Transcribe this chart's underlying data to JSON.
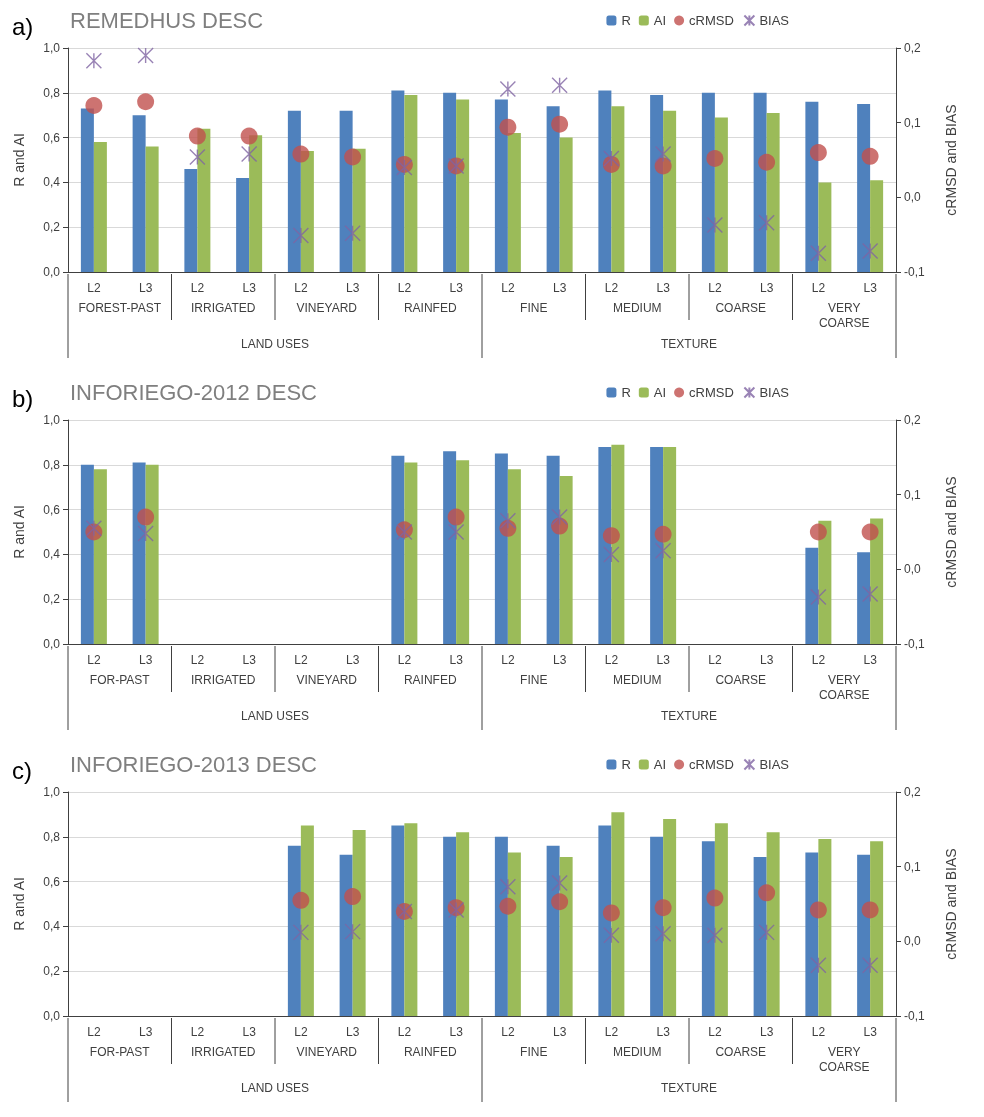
{
  "chart_data": [
    {
      "type": "bar",
      "title": "REMEDHUS DESC",
      "ylabel": "R and AI",
      "y2label": "cRMSD and BIAS",
      "categories": [
        "L2",
        "L3",
        "L2",
        "L3",
        "L2",
        "L3",
        "L2",
        "L3",
        "L2",
        "L3",
        "L2",
        "L3",
        "L2",
        "L3",
        "L2",
        "L3"
      ],
      "series": [
        {
          "name": "R",
          "color": "#4f81bd",
          "values": [
            0.73,
            0.7,
            0.46,
            0.42,
            0.72,
            0.72,
            0.81,
            0.8,
            0.77,
            0.74,
            0.81,
            0.79,
            0.8,
            0.8,
            0.76,
            0.75
          ]
        },
        {
          "name": "AI",
          "color": "#9bbb59",
          "values": [
            0.58,
            0.56,
            0.64,
            0.61,
            0.54,
            0.55,
            0.79,
            0.77,
            0.62,
            0.6,
            0.74,
            0.72,
            0.69,
            0.71,
            0.4,
            0.41
          ]
        },
        {
          "name": "cRMSD",
          "type": "scatter",
          "axis": "y2",
          "marker": "circle",
          "color": "#c0504d",
          "values": [
            0.123,
            0.128,
            0.082,
            0.082,
            0.058,
            0.054,
            0.044,
            0.042,
            0.094,
            0.098,
            0.044,
            0.042,
            0.052,
            0.047,
            0.06,
            0.055
          ]
        },
        {
          "name": "BIAS",
          "type": "scatter",
          "axis": "y2",
          "marker": "cross",
          "color": "#8064a2",
          "values": [
            0.183,
            0.19,
            0.054,
            0.058,
            -0.051,
            -0.048,
            0.04,
            0.042,
            0.145,
            0.15,
            0.052,
            0.058,
            -0.037,
            -0.034,
            -0.075,
            -0.072
          ]
        }
      ],
      "ylim": [
        0,
        1
      ],
      "yticks": [
        {
          "value": 0,
          "label": "0,0"
        },
        {
          "value": 0.2,
          "label": "0,2"
        },
        {
          "value": 0.4,
          "label": "0,4"
        },
        {
          "value": 0.6,
          "label": "0,6"
        },
        {
          "value": 0.8,
          "label": "0,8"
        },
        {
          "value": 1,
          "label": "1,0"
        }
      ],
      "y2lim": [
        -0.1,
        0.2
      ],
      "y2ticks": [
        {
          "value": -0.1,
          "label": "-0,1"
        },
        {
          "value": 0,
          "label": "0,0"
        },
        {
          "value": 0.1,
          "label": "0,1"
        },
        {
          "value": 0.2,
          "label": "0,2"
        }
      ],
      "grid": "y",
      "legend": "top right",
      "annotations": [
        "a)",
        "FOREST-PAST",
        "IRRIGATED",
        "VINEYARD",
        "RAINFED",
        "FINE",
        "MEDIUM",
        "COARSE",
        "VERY COARSE",
        "LAND USES",
        "TEXTURE"
      ]
    },
    {
      "type": "bar",
      "title": "INFORIEGO-2012 DESC",
      "ylabel": "R and AI",
      "y2label": "cRMSD and BIAS",
      "categories": [
        "L2",
        "L3",
        "L2",
        "L3",
        "L2",
        "L3",
        "L2",
        "L3",
        "L2",
        "L3",
        "L2",
        "L3",
        "L2",
        "L3",
        "L2",
        "L3"
      ],
      "series": [
        {
          "name": "R",
          "color": "#4f81bd",
          "values": [
            0.8,
            0.81,
            null,
            null,
            null,
            null,
            0.84,
            0.86,
            0.85,
            0.84,
            0.88,
            0.88,
            null,
            null,
            0.43,
            0.41
          ]
        },
        {
          "name": "AI",
          "color": "#9bbb59",
          "values": [
            0.78,
            0.8,
            null,
            null,
            null,
            null,
            0.81,
            0.82,
            0.78,
            0.75,
            0.89,
            0.88,
            null,
            null,
            0.55,
            0.56
          ]
        },
        {
          "name": "cRMSD",
          "type": "scatter",
          "axis": "y2",
          "marker": "circle",
          "color": "#c0504d",
          "values": [
            0.05,
            0.07,
            null,
            null,
            null,
            null,
            0.053,
            0.07,
            0.055,
            0.058,
            0.045,
            0.047,
            null,
            null,
            0.05,
            0.05
          ]
        },
        {
          "name": "BIAS",
          "type": "scatter",
          "axis": "y2",
          "marker": "cross",
          "color": "#8064a2",
          "values": [
            0.055,
            0.048,
            null,
            null,
            null,
            null,
            0.05,
            0.05,
            0.065,
            0.07,
            0.02,
            0.025,
            null,
            null,
            -0.037,
            -0.033
          ]
        }
      ],
      "ylim": [
        0,
        1
      ],
      "yticks": [
        {
          "value": 0,
          "label": "0,0"
        },
        {
          "value": 0.2,
          "label": "0,2"
        },
        {
          "value": 0.4,
          "label": "0,4"
        },
        {
          "value": 0.6,
          "label": "0,6"
        },
        {
          "value": 0.8,
          "label": "0,8"
        },
        {
          "value": 1,
          "label": "1,0"
        }
      ],
      "y2lim": [
        -0.1,
        0.2
      ],
      "y2ticks": [
        {
          "value": -0.1,
          "label": "-0,1"
        },
        {
          "value": 0,
          "label": "0,0"
        },
        {
          "value": 0.1,
          "label": "0,1"
        },
        {
          "value": 0.2,
          "label": "0,2"
        }
      ],
      "grid": "y",
      "legend": "top right",
      "annotations": [
        "b)",
        "FOR-PAST",
        "IRRIGATED",
        "VINEYARD",
        "RAINFED",
        "FINE",
        "MEDIUM",
        "COARSE",
        "VERY COARSE",
        "LAND USES",
        "TEXTURE"
      ]
    },
    {
      "type": "bar",
      "title": "INFORIEGO-2013 DESC",
      "ylabel": "R and AI",
      "y2label": "cRMSD and BIAS",
      "categories": [
        "L2",
        "L3",
        "L2",
        "L3",
        "L2",
        "L3",
        "L2",
        "L3",
        "L2",
        "L3",
        "L2",
        "L3",
        "L2",
        "L3",
        "L2",
        "L3"
      ],
      "series": [
        {
          "name": "R",
          "color": "#4f81bd",
          "values": [
            null,
            null,
            null,
            null,
            0.76,
            0.72,
            0.85,
            0.8,
            0.8,
            0.76,
            0.85,
            0.8,
            0.78,
            0.71,
            0.73,
            0.72
          ]
        },
        {
          "name": "AI",
          "color": "#9bbb59",
          "values": [
            null,
            null,
            null,
            null,
            0.85,
            0.83,
            0.86,
            0.82,
            0.73,
            0.71,
            0.91,
            0.88,
            0.86,
            0.82,
            0.79,
            0.78
          ]
        },
        {
          "name": "cRMSD",
          "type": "scatter",
          "axis": "y2",
          "marker": "circle",
          "color": "#c0504d",
          "values": [
            null,
            null,
            null,
            null,
            0.055,
            0.06,
            0.04,
            0.045,
            0.047,
            0.053,
            0.038,
            0.045,
            0.058,
            0.065,
            0.042,
            0.042
          ]
        },
        {
          "name": "BIAS",
          "type": "scatter",
          "axis": "y2",
          "marker": "cross",
          "color": "#8064a2",
          "values": [
            null,
            null,
            null,
            null,
            0.012,
            0.013,
            0.04,
            0.042,
            0.073,
            0.078,
            0.008,
            0.01,
            0.008,
            0.012,
            -0.032,
            -0.032
          ]
        }
      ],
      "ylim": [
        0,
        1
      ],
      "yticks": [
        {
          "value": 0,
          "label": "0,0"
        },
        {
          "value": 0.2,
          "label": "0,2"
        },
        {
          "value": 0.4,
          "label": "0,4"
        },
        {
          "value": 0.6,
          "label": "0,6"
        },
        {
          "value": 0.8,
          "label": "0,8"
        },
        {
          "value": 1,
          "label": "1,0"
        }
      ],
      "y2lim": [
        -0.1,
        0.2
      ],
      "y2ticks": [
        {
          "value": -0.1,
          "label": "-0,1"
        },
        {
          "value": 0,
          "label": "0,0"
        },
        {
          "value": 0.1,
          "label": "0,1"
        },
        {
          "value": 0.2,
          "label": "0,2"
        }
      ],
      "grid": "y",
      "legend": "top right",
      "annotations": [
        "c)",
        "FOR-PAST",
        "IRRIGATED",
        "VINEYARD",
        "RAINFED",
        "FINE",
        "MEDIUM",
        "COARSE",
        "VERY COARSE",
        "LAND USES",
        "TEXTURE"
      ]
    }
  ]
}
